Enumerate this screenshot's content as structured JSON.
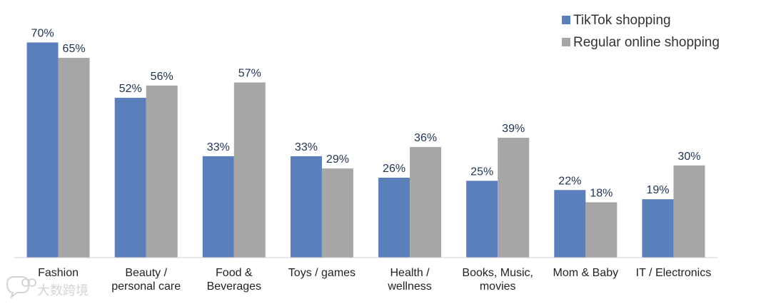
{
  "chart_data": {
    "type": "bar",
    "categories": [
      [
        "Fashion"
      ],
      [
        "Beauty /",
        "personal care"
      ],
      [
        "Food &",
        "Beverages"
      ],
      [
        "Toys / games"
      ],
      [
        "Health /",
        "wellness"
      ],
      [
        "Books, Music,",
        "movies"
      ],
      [
        "Mom & Baby"
      ],
      [
        "IT / Electronics"
      ]
    ],
    "series": [
      {
        "name": "TikTok shopping",
        "values": [
          70,
          52,
          33,
          33,
          26,
          25,
          22,
          19
        ],
        "color": "#5b7fbb"
      },
      {
        "name": "Regular online shopping",
        "values": [
          65,
          56,
          57,
          29,
          36,
          39,
          18,
          30
        ],
        "color": "#a6a6a6"
      }
    ],
    "value_suffix": "%",
    "ylim": [
      0,
      75
    ],
    "legend_position": "top-right",
    "grid": false
  },
  "watermark": {
    "text": "大数跨境",
    "icon": "speech-bubble-logo-icon"
  }
}
